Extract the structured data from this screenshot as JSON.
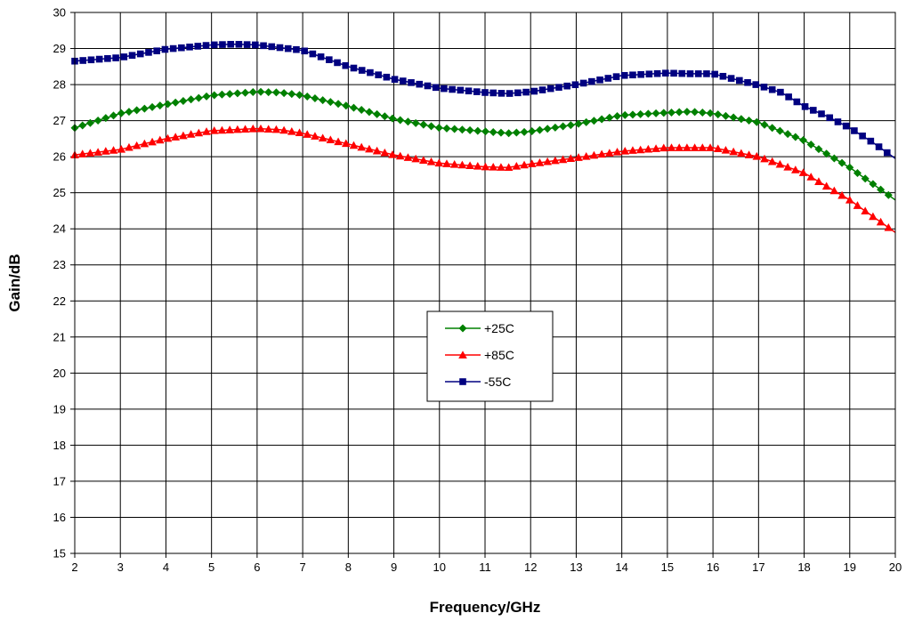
{
  "chart_data": {
    "type": "line",
    "xlabel": "Frequency/GHz",
    "ylabel": "Gain/dB",
    "xlim": [
      2,
      20
    ],
    "ylim": [
      15,
      30
    ],
    "x_ticks": [
      "2",
      "3",
      "4",
      "5",
      "6",
      "7",
      "8",
      "9",
      "10",
      "11",
      "12",
      "13",
      "14",
      "15",
      "16",
      "17",
      "18",
      "19",
      "20"
    ],
    "y_ticks": [
      "15",
      "16",
      "17",
      "18",
      "19",
      "20",
      "21",
      "22",
      "23",
      "24",
      "25",
      "26",
      "27",
      "28",
      "29",
      "30"
    ],
    "grid": true,
    "legend_position": "center",
    "series": [
      {
        "name": "+25C",
        "color": "#008000",
        "marker": "diamond",
        "x": [
          2,
          3,
          4,
          5,
          6,
          6.5,
          7,
          8,
          9,
          10,
          11,
          11.5,
          12,
          13,
          14,
          15,
          15.5,
          16,
          17,
          18,
          19,
          20
        ],
        "y": [
          26.8,
          27.2,
          27.45,
          27.7,
          27.8,
          27.78,
          27.7,
          27.4,
          27.05,
          26.8,
          26.7,
          26.65,
          26.7,
          26.9,
          27.15,
          27.22,
          27.25,
          27.2,
          26.95,
          26.45,
          25.7,
          24.8
        ]
      },
      {
        "name": "+85C",
        "color": "#ff0000",
        "marker": "triangle",
        "x": [
          2,
          3,
          4,
          5,
          6,
          6.5,
          7,
          8,
          9,
          10,
          11,
          11.5,
          12,
          13,
          14,
          15,
          16,
          17,
          18,
          19,
          20
        ],
        "y": [
          26.05,
          26.2,
          26.5,
          26.72,
          26.78,
          26.75,
          26.65,
          26.35,
          26.05,
          25.82,
          25.72,
          25.7,
          25.8,
          25.97,
          26.15,
          26.25,
          26.25,
          26.0,
          25.55,
          24.8,
          23.9
        ]
      },
      {
        "name": "-55C",
        "color": "#000080",
        "marker": "square",
        "x": [
          2,
          3,
          4,
          5,
          5.5,
          6,
          7,
          8,
          9,
          10,
          11,
          11.5,
          12,
          13,
          14,
          15,
          15.5,
          16,
          17,
          17.5,
          18,
          18.5,
          19,
          19.5,
          20
        ],
        "y": [
          28.65,
          28.75,
          28.98,
          29.1,
          29.12,
          29.1,
          28.95,
          28.5,
          28.15,
          27.9,
          27.78,
          27.75,
          27.8,
          28.0,
          28.25,
          28.32,
          28.3,
          28.3,
          27.98,
          27.78,
          27.4,
          27.12,
          26.8,
          26.4,
          25.95
        ]
      }
    ]
  }
}
